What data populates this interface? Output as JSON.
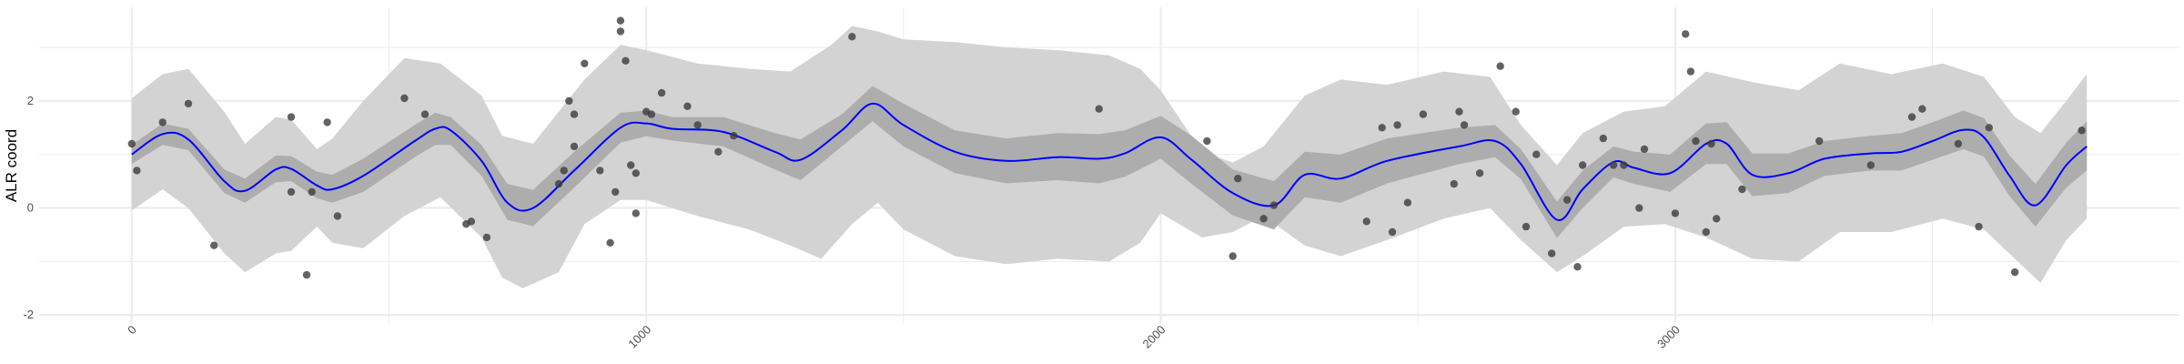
{
  "chart_data": {
    "type": "line",
    "title": "",
    "xlabel": "",
    "ylabel": "ALR coord",
    "xlim": [
      -180,
      3980
    ],
    "ylim": [
      -2.15,
      3.75
    ],
    "x_ticks": [
      0,
      1000,
      2000,
      3000
    ],
    "y_ticks": [
      -2,
      0,
      2
    ],
    "grid": true,
    "colors": {
      "mean_line": "#0000ff",
      "inner_band": "#adadad",
      "outer_band": "#d3d3d3",
      "points": "#3c3c3c",
      "grid": "#ebebeb"
    },
    "mean": [
      [
        0,
        1.0
      ],
      [
        60,
        1.38
      ],
      [
        110,
        1.28
      ],
      [
        180,
        0.5
      ],
      [
        220,
        0.32
      ],
      [
        280,
        0.72
      ],
      [
        310,
        0.73
      ],
      [
        360,
        0.42
      ],
      [
        390,
        0.35
      ],
      [
        450,
        0.6
      ],
      [
        550,
        1.25
      ],
      [
        590,
        1.48
      ],
      [
        620,
        1.45
      ],
      [
        680,
        0.88
      ],
      [
        730,
        0.1
      ],
      [
        780,
        0.0
      ],
      [
        860,
        0.7
      ],
      [
        950,
        1.5
      ],
      [
        1000,
        1.58
      ],
      [
        1050,
        1.48
      ],
      [
        1150,
        1.42
      ],
      [
        1250,
        1.05
      ],
      [
        1300,
        0.9
      ],
      [
        1380,
        1.45
      ],
      [
        1440,
        1.95
      ],
      [
        1500,
        1.55
      ],
      [
        1600,
        1.05
      ],
      [
        1700,
        0.88
      ],
      [
        1800,
        0.95
      ],
      [
        1880,
        0.92
      ],
      [
        1930,
        1.02
      ],
      [
        2000,
        1.32
      ],
      [
        2060,
        0.9
      ],
      [
        2140,
        0.28
      ],
      [
        2220,
        0.05
      ],
      [
        2280,
        0.62
      ],
      [
        2350,
        0.55
      ],
      [
        2440,
        0.88
      ],
      [
        2580,
        1.15
      ],
      [
        2650,
        1.25
      ],
      [
        2700,
        0.82
      ],
      [
        2770,
        -0.22
      ],
      [
        2820,
        0.35
      ],
      [
        2880,
        0.86
      ],
      [
        2920,
        0.75
      ],
      [
        2990,
        0.65
      ],
      [
        3060,
        1.2
      ],
      [
        3100,
        1.2
      ],
      [
        3150,
        0.62
      ],
      [
        3220,
        0.65
      ],
      [
        3290,
        0.92
      ],
      [
        3380,
        1.02
      ],
      [
        3440,
        1.05
      ],
      [
        3500,
        1.25
      ],
      [
        3560,
        1.46
      ],
      [
        3600,
        1.32
      ],
      [
        3650,
        0.6
      ],
      [
        3700,
        0.05
      ],
      [
        3760,
        0.8
      ],
      [
        3800,
        1.15
      ]
    ],
    "inner_band": {
      "upper": [
        [
          0,
          1.18
        ],
        [
          60,
          1.58
        ],
        [
          110,
          1.48
        ],
        [
          180,
          0.72
        ],
        [
          220,
          0.55
        ],
        [
          280,
          0.98
        ],
        [
          310,
          0.97
        ],
        [
          360,
          0.68
        ],
        [
          390,
          0.62
        ],
        [
          450,
          0.92
        ],
        [
          550,
          1.55
        ],
        [
          590,
          1.78
        ],
        [
          620,
          1.7
        ],
        [
          680,
          1.18
        ],
        [
          730,
          0.45
        ],
        [
          780,
          0.34
        ],
        [
          860,
          1.05
        ],
        [
          950,
          1.78
        ],
        [
          1000,
          1.82
        ],
        [
          1050,
          1.7
        ],
        [
          1150,
          1.7
        ],
        [
          1250,
          1.4
        ],
        [
          1300,
          1.28
        ],
        [
          1380,
          1.75
        ],
        [
          1440,
          2.28
        ],
        [
          1500,
          1.95
        ],
        [
          1600,
          1.45
        ],
        [
          1700,
          1.3
        ],
        [
          1800,
          1.4
        ],
        [
          1880,
          1.38
        ],
        [
          1930,
          1.45
        ],
        [
          2000,
          1.72
        ],
        [
          2060,
          1.35
        ],
        [
          2140,
          0.72
        ],
        [
          2220,
          0.5
        ],
        [
          2280,
          1.05
        ],
        [
          2350,
          1.0
        ],
        [
          2440,
          1.3
        ],
        [
          2580,
          1.5
        ],
        [
          2650,
          1.55
        ],
        [
          2700,
          1.1
        ],
        [
          2770,
          0.12
        ],
        [
          2820,
          0.7
        ],
        [
          2880,
          1.15
        ],
        [
          2920,
          1.05
        ],
        [
          2990,
          1.0
        ],
        [
          3060,
          1.58
        ],
        [
          3100,
          1.6
        ],
        [
          3150,
          1.02
        ],
        [
          3220,
          1.02
        ],
        [
          3290,
          1.25
        ],
        [
          3380,
          1.35
        ],
        [
          3440,
          1.4
        ],
        [
          3500,
          1.6
        ],
        [
          3560,
          1.82
        ],
        [
          3600,
          1.68
        ],
        [
          3650,
          0.98
        ],
        [
          3700,
          0.45
        ],
        [
          3760,
          1.22
        ],
        [
          3800,
          1.62
        ]
      ],
      "lower": [
        [
          0,
          0.82
        ],
        [
          60,
          1.18
        ],
        [
          110,
          1.08
        ],
        [
          180,
          0.28
        ],
        [
          220,
          0.1
        ],
        [
          280,
          0.48
        ],
        [
          310,
          0.5
        ],
        [
          360,
          0.18
        ],
        [
          390,
          0.1
        ],
        [
          450,
          0.3
        ],
        [
          550,
          0.95
        ],
        [
          590,
          1.18
        ],
        [
          620,
          1.18
        ],
        [
          680,
          0.6
        ],
        [
          730,
          -0.22
        ],
        [
          780,
          -0.34
        ],
        [
          860,
          0.38
        ],
        [
          950,
          1.22
        ],
        [
          1000,
          1.34
        ],
        [
          1050,
          1.26
        ],
        [
          1150,
          1.15
        ],
        [
          1250,
          0.72
        ],
        [
          1300,
          0.52
        ],
        [
          1380,
          1.15
        ],
        [
          1440,
          1.62
        ],
        [
          1500,
          1.15
        ],
        [
          1600,
          0.65
        ],
        [
          1700,
          0.46
        ],
        [
          1800,
          0.52
        ],
        [
          1880,
          0.46
        ],
        [
          1930,
          0.58
        ],
        [
          2000,
          0.92
        ],
        [
          2060,
          0.45
        ],
        [
          2140,
          -0.14
        ],
        [
          2220,
          -0.4
        ],
        [
          2280,
          0.2
        ],
        [
          2350,
          0.1
        ],
        [
          2440,
          0.46
        ],
        [
          2580,
          0.82
        ],
        [
          2650,
          0.95
        ],
        [
          2700,
          0.54
        ],
        [
          2770,
          -0.56
        ],
        [
          2820,
          0.0
        ],
        [
          2880,
          0.57
        ],
        [
          2920,
          0.45
        ],
        [
          2990,
          0.3
        ],
        [
          3060,
          0.82
        ],
        [
          3100,
          0.82
        ],
        [
          3150,
          0.22
        ],
        [
          3220,
          0.28
        ],
        [
          3290,
          0.6
        ],
        [
          3380,
          0.7
        ],
        [
          3440,
          0.7
        ],
        [
          3500,
          0.9
        ],
        [
          3560,
          1.1
        ],
        [
          3600,
          0.96
        ],
        [
          3650,
          0.22
        ],
        [
          3700,
          -0.35
        ],
        [
          3760,
          0.38
        ],
        [
          3800,
          0.7
        ]
      ]
    },
    "outer_band": {
      "upper": [
        [
          0,
          2.05
        ],
        [
          60,
          2.5
        ],
        [
          110,
          2.6
        ],
        [
          180,
          1.8
        ],
        [
          220,
          1.2
        ],
        [
          280,
          1.7
        ],
        [
          310,
          1.65
        ],
        [
          360,
          1.1
        ],
        [
          390,
          1.3
        ],
        [
          450,
          2.0
        ],
        [
          530,
          2.8
        ],
        [
          600,
          2.7
        ],
        [
          680,
          2.1
        ],
        [
          720,
          1.35
        ],
        [
          780,
          1.2
        ],
        [
          830,
          1.8
        ],
        [
          880,
          2.4
        ],
        [
          950,
          3.05
        ],
        [
          1000,
          2.95
        ],
        [
          1100,
          2.7
        ],
        [
          1200,
          2.6
        ],
        [
          1280,
          2.55
        ],
        [
          1360,
          3.05
        ],
        [
          1400,
          3.4
        ],
        [
          1450,
          3.3
        ],
        [
          1500,
          3.15
        ],
        [
          1600,
          3.1
        ],
        [
          1700,
          3.0
        ],
        [
          1800,
          2.95
        ],
        [
          1900,
          2.85
        ],
        [
          1960,
          2.6
        ],
        [
          2000,
          2.2
        ],
        [
          2080,
          1.05
        ],
        [
          2140,
          0.85
        ],
        [
          2200,
          1.15
        ],
        [
          2280,
          2.1
        ],
        [
          2350,
          2.4
        ],
        [
          2440,
          2.3
        ],
        [
          2550,
          2.55
        ],
        [
          2640,
          2.45
        ],
        [
          2700,
          1.55
        ],
        [
          2770,
          0.8
        ],
        [
          2820,
          1.4
        ],
        [
          2900,
          1.8
        ],
        [
          2980,
          1.9
        ],
        [
          3060,
          2.55
        ],
        [
          3150,
          2.35
        ],
        [
          3240,
          2.2
        ],
        [
          3320,
          2.7
        ],
        [
          3420,
          2.5
        ],
        [
          3520,
          2.7
        ],
        [
          3600,
          2.45
        ],
        [
          3660,
          1.7
        ],
        [
          3710,
          1.4
        ],
        [
          3760,
          2.0
        ],
        [
          3800,
          2.5
        ]
      ],
      "lower": [
        [
          0,
          -0.05
        ],
        [
          60,
          0.35
        ],
        [
          110,
          0.0
        ],
        [
          180,
          -0.85
        ],
        [
          220,
          -1.2
        ],
        [
          280,
          -0.85
        ],
        [
          310,
          -0.8
        ],
        [
          360,
          -0.35
        ],
        [
          390,
          -0.65
        ],
        [
          450,
          -0.75
        ],
        [
          530,
          -0.15
        ],
        [
          600,
          0.2
        ],
        [
          680,
          -0.55
        ],
        [
          720,
          -1.3
        ],
        [
          760,
          -1.5
        ],
        [
          830,
          -1.2
        ],
        [
          880,
          -0.3
        ],
        [
          950,
          0.15
        ],
        [
          1000,
          0.15
        ],
        [
          1100,
          -0.15
        ],
        [
          1200,
          -0.4
        ],
        [
          1280,
          -0.7
        ],
        [
          1340,
          -0.95
        ],
        [
          1400,
          -0.3
        ],
        [
          1450,
          0.1
        ],
        [
          1500,
          -0.4
        ],
        [
          1600,
          -0.9
        ],
        [
          1700,
          -1.05
        ],
        [
          1800,
          -0.95
        ],
        [
          1900,
          -1.0
        ],
        [
          1960,
          -0.65
        ],
        [
          2000,
          -0.1
        ],
        [
          2080,
          -0.55
        ],
        [
          2140,
          -0.45
        ],
        [
          2200,
          -0.15
        ],
        [
          2280,
          -0.7
        ],
        [
          2350,
          -0.9
        ],
        [
          2440,
          -0.6
        ],
        [
          2550,
          -0.2
        ],
        [
          2640,
          0.0
        ],
        [
          2700,
          -0.6
        ],
        [
          2770,
          -1.2
        ],
        [
          2820,
          -0.9
        ],
        [
          2900,
          -0.35
        ],
        [
          2980,
          -0.3
        ],
        [
          3060,
          -0.55
        ],
        [
          3150,
          -0.95
        ],
        [
          3240,
          -1.0
        ],
        [
          3320,
          -0.45
        ],
        [
          3420,
          -0.45
        ],
        [
          3520,
          -0.2
        ],
        [
          3600,
          -0.4
        ],
        [
          3660,
          -0.95
        ],
        [
          3710,
          -1.4
        ],
        [
          3760,
          -0.6
        ],
        [
          3800,
          -0.2
        ]
      ]
    },
    "points": [
      [
        0,
        1.2
      ],
      [
        10,
        0.7
      ],
      [
        60,
        1.6
      ],
      [
        110,
        1.95
      ],
      [
        160,
        -0.7
      ],
      [
        310,
        1.7
      ],
      [
        310,
        0.3
      ],
      [
        340,
        -1.25
      ],
      [
        350,
        0.3
      ],
      [
        380,
        1.6
      ],
      [
        400,
        -0.15
      ],
      [
        530,
        2.05
      ],
      [
        570,
        1.75
      ],
      [
        650,
        -0.3
      ],
      [
        660,
        -0.25
      ],
      [
        690,
        -0.55
      ],
      [
        830,
        0.45
      ],
      [
        840,
        0.7
      ],
      [
        850,
        2.0
      ],
      [
        860,
        1.15
      ],
      [
        860,
        1.75
      ],
      [
        880,
        2.7
      ],
      [
        910,
        0.7
      ],
      [
        930,
        -0.65
      ],
      [
        940,
        0.3
      ],
      [
        950,
        3.5
      ],
      [
        950,
        3.3
      ],
      [
        960,
        2.75
      ],
      [
        970,
        0.8
      ],
      [
        980,
        0.65
      ],
      [
        980,
        -0.1
      ],
      [
        1000,
        1.8
      ],
      [
        1010,
        1.75
      ],
      [
        1030,
        2.15
      ],
      [
        1080,
        1.9
      ],
      [
        1100,
        1.55
      ],
      [
        1140,
        1.05
      ],
      [
        1170,
        1.35
      ],
      [
        1400,
        3.2
      ],
      [
        1880,
        1.85
      ],
      [
        2090,
        1.25
      ],
      [
        2140,
        -0.9
      ],
      [
        2150,
        0.55
      ],
      [
        2200,
        -0.2
      ],
      [
        2220,
        0.05
      ],
      [
        2400,
        -0.25
      ],
      [
        2430,
        1.5
      ],
      [
        2450,
        -0.45
      ],
      [
        2460,
        1.55
      ],
      [
        2480,
        0.1
      ],
      [
        2510,
        1.75
      ],
      [
        2570,
        0.45
      ],
      [
        2580,
        1.8
      ],
      [
        2590,
        1.55
      ],
      [
        2620,
        0.65
      ],
      [
        2660,
        2.65
      ],
      [
        2690,
        1.8
      ],
      [
        2710,
        -0.35
      ],
      [
        2730,
        1.0
      ],
      [
        2760,
        -0.85
      ],
      [
        2790,
        0.15
      ],
      [
        2810,
        -1.1
      ],
      [
        2820,
        0.8
      ],
      [
        2860,
        1.3
      ],
      [
        2880,
        0.8
      ],
      [
        2900,
        0.8
      ],
      [
        2930,
        0.0
      ],
      [
        2940,
        1.1
      ],
      [
        3000,
        -0.1
      ],
      [
        3020,
        3.25
      ],
      [
        3030,
        2.55
      ],
      [
        3040,
        1.25
      ],
      [
        3060,
        -0.45
      ],
      [
        3070,
        1.2
      ],
      [
        3080,
        -0.2
      ],
      [
        3130,
        0.35
      ],
      [
        3280,
        1.25
      ],
      [
        3380,
        0.8
      ],
      [
        3460,
        1.7
      ],
      [
        3480,
        1.85
      ],
      [
        3550,
        1.2
      ],
      [
        3590,
        -0.35
      ],
      [
        3610,
        1.5
      ],
      [
        3660,
        -1.2
      ],
      [
        3790,
        1.45
      ]
    ]
  }
}
